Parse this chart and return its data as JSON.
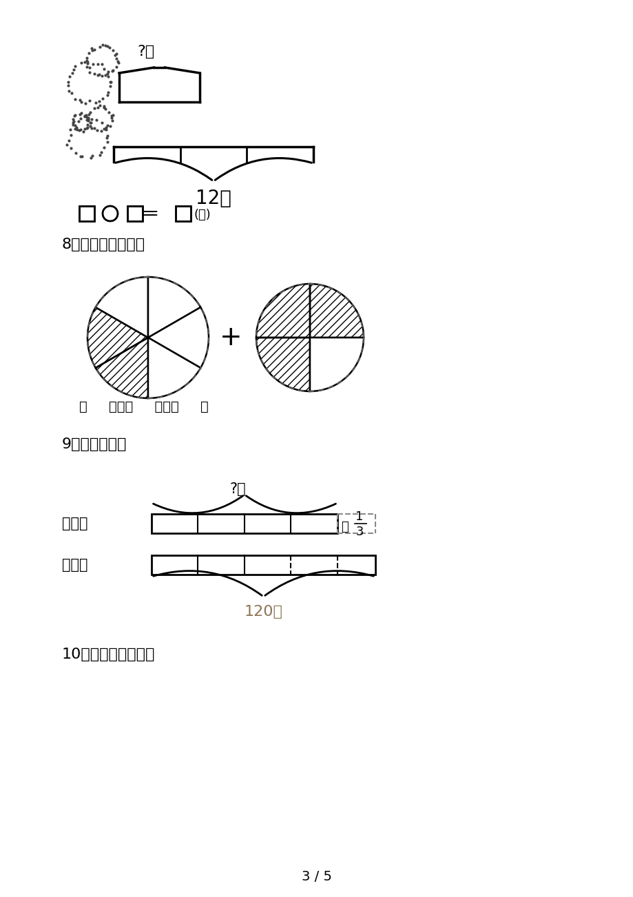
{
  "bg_color": "#ffffff",
  "text_color": "#000000",
  "page_number": "3 / 5",
  "sec7_q": "?只",
  "sec7_12": "12只",
  "sec7_formula_squares": "□○□＝□",
  "sec7_formula_zhi": "(只)",
  "sec8_label": "8．看图列式计算。",
  "sec8_formula": "（     ）＋（     ）＝（     ）",
  "sec9_label": "9．看图列式。",
  "sec9_bai": "白兔：",
  "sec9_hui": "灰兔：",
  "sec9_q": "?只",
  "sec9_120": "120只",
  "sec9_duo": "多",
  "sec10_label": "10．看图列式计算。"
}
